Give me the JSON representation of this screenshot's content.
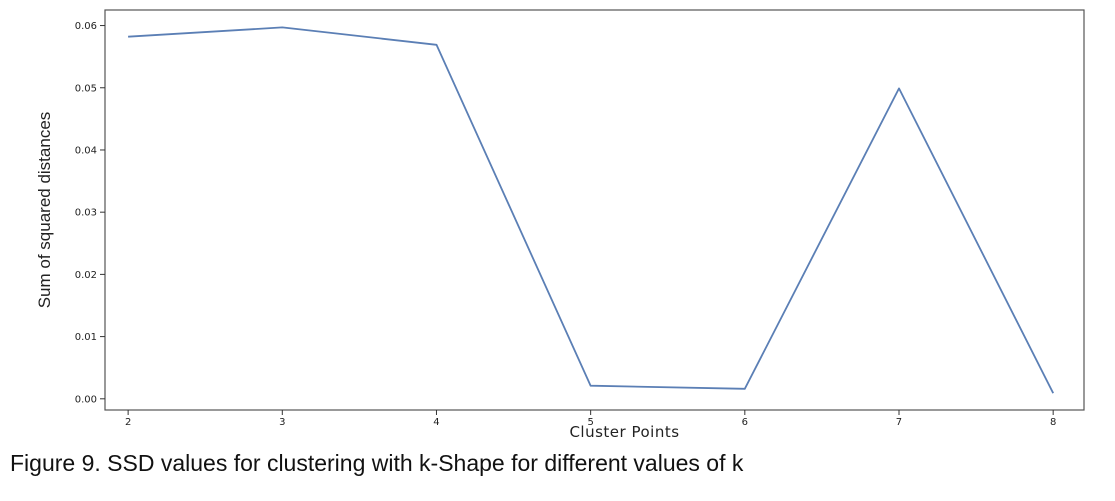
{
  "chart_data": {
    "type": "line",
    "x": [
      2,
      3,
      4,
      5,
      6,
      7,
      8
    ],
    "series": [
      {
        "values": [
          0.0582,
          0.0597,
          0.0569,
          0.0021,
          0.0016,
          0.0499,
          0.0009
        ],
        "color": "#5b7fb5"
      }
    ],
    "xticks": [
      "2",
      "3",
      "4",
      "5",
      "6",
      "7",
      "8"
    ],
    "yticks": [
      "0.00",
      "0.01",
      "0.02",
      "0.03",
      "0.04",
      "0.05",
      "0.06"
    ],
    "xlabel": "Cluster Points",
    "ylabel": "Sum of squared distances",
    "xlim": [
      1.85,
      8.2
    ],
    "ylim": [
      -0.0018,
      0.0625
    ],
    "grid": false
  },
  "caption": "Figure 9. SSD values for clustering with k-Shape for different values of k"
}
